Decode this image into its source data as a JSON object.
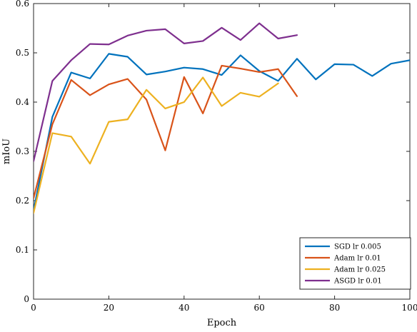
{
  "chart_data": {
    "type": "line",
    "xlabel": "Epoch",
    "ylabel": "mIoU",
    "xlim": [
      0,
      100
    ],
    "ylim": [
      0,
      0.6
    ],
    "x_ticks": [
      "0",
      "20",
      "40",
      "60",
      "80",
      "100"
    ],
    "y_ticks": [
      "0",
      "0.1",
      "0.2",
      "0.3",
      "0.4",
      "0.5",
      "0.6"
    ],
    "legend_position": "bottom-right",
    "grid": false,
    "series": [
      {
        "name": "SGD lr 0.005",
        "color": "#0072BD",
        "x": [
          0,
          5,
          10,
          15,
          20,
          25,
          30,
          35,
          40,
          45,
          50,
          55,
          60,
          65,
          70,
          75,
          80,
          85,
          90,
          95,
          100
        ],
        "y": [
          0.18,
          0.37,
          0.46,
          0.448,
          0.498,
          0.492,
          0.456,
          0.462,
          0.47,
          0.467,
          0.455,
          0.495,
          0.463,
          0.443,
          0.488,
          0.446,
          0.477,
          0.476,
          0.453,
          0.478,
          0.485
        ]
      },
      {
        "name": "Adam lr 0.01",
        "color": "#D95319",
        "x": [
          0,
          5,
          10,
          15,
          20,
          25,
          30,
          35,
          40,
          45,
          50,
          55,
          60,
          65,
          70
        ],
        "y": [
          0.205,
          0.355,
          0.445,
          0.414,
          0.436,
          0.447,
          0.405,
          0.302,
          0.451,
          0.377,
          0.474,
          0.468,
          0.461,
          0.467,
          0.412
        ]
      },
      {
        "name": "Adam lr 0.025",
        "color": "#EDB120",
        "x": [
          0,
          5,
          10,
          15,
          20,
          25,
          30,
          35,
          40,
          45,
          50,
          55,
          60,
          65
        ],
        "y": [
          0.175,
          0.337,
          0.33,
          0.275,
          0.36,
          0.365,
          0.425,
          0.387,
          0.4,
          0.45,
          0.392,
          0.419,
          0.411,
          0.438
        ]
      },
      {
        "name": "ASGD lr 0.01",
        "color": "#7E2F8E",
        "x": [
          0,
          5,
          10,
          15,
          20,
          25,
          30,
          35,
          40,
          45,
          50,
          55,
          60,
          65,
          70
        ],
        "y": [
          0.28,
          0.443,
          0.485,
          0.518,
          0.517,
          0.535,
          0.545,
          0.548,
          0.519,
          0.524,
          0.551,
          0.526,
          0.56,
          0.529,
          0.536
        ]
      }
    ]
  }
}
